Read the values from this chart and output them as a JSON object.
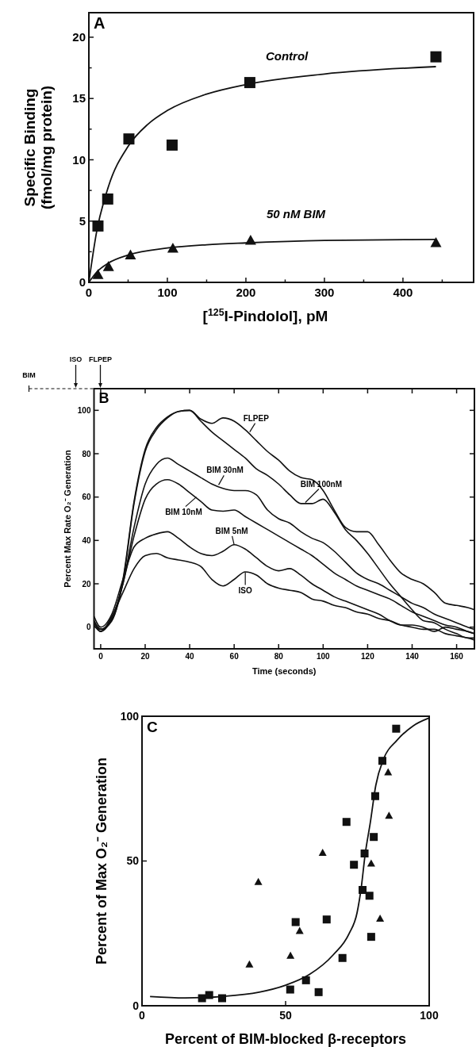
{
  "chart_data": [
    {
      "type": "scatter",
      "title": "A",
      "xlabel": "[$^{125}$I-Pindolol], pM",
      "ylabel": "Specific Binding\n(fmol/mg protein)",
      "xlim": [
        0,
        490
      ],
      "ylim": [
        0,
        22
      ],
      "xticks": [
        0,
        {
          "value": 50,
          "label": null
        },
        100,
        {
          "value": 150,
          "label": null
        },
        200,
        {
          "value": 250,
          "label": null
        },
        300,
        {
          "value": 350,
          "label": null
        },
        400,
        {
          "value": 450,
          "label": null
        }
      ],
      "yticks": [
        0,
        {
          "value": 2.5,
          "label": null
        },
        5,
        {
          "value": 7.5,
          "label": null
        },
        10,
        {
          "value": 12.5,
          "label": null
        },
        15,
        {
          "value": 17.5,
          "label": null
        },
        20
      ],
      "series": [
        {
          "name": "Control",
          "marker": "square",
          "color": "#111111",
          "x": [
            11.6,
            24,
            51,
            106,
            205,
            442
          ],
          "values": [
            4.6,
            6.8,
            11.7,
            11.2,
            16.3,
            18.4
          ]
        },
        {
          "name": "50 nM BIM",
          "marker": "triangle",
          "color": "#111111",
          "x": [
            11.6,
            25,
            53,
            107,
            206,
            442
          ],
          "values": [
            0.6,
            1.25,
            2.2,
            2.75,
            3.4,
            3.2
          ]
        },
        {
          "type": "line",
          "marker": "none",
          "color": "#111111",
          "x": [
            0,
            10,
            25,
            50,
            75,
            100,
            150,
            200,
            300,
            442
          ],
          "values": [
            0,
            4.16,
            7.83,
            11.1,
            12.89,
            14.02,
            15.36,
            16.14,
            17.0,
            17.6
          ]
        },
        {
          "type": "line",
          "marker": "none",
          "color": "#111111",
          "x": [
            0,
            10,
            25,
            50,
            100,
            150,
            200,
            300,
            442
          ],
          "values": [
            0,
            0.84,
            1.58,
            2.23,
            2.8,
            3.07,
            3.22,
            3.42,
            3.5
          ]
        }
      ]
    },
    {
      "type": "line",
      "title": "B",
      "xlabel": "Time (seconds)",
      "ylabel": "Percent Max Rate O₂⁻ Generation",
      "xlim": [
        -3,
        168
      ],
      "ylim": [
        -10,
        110
      ],
      "xticks": [
        0,
        20,
        40,
        60,
        80,
        100,
        120,
        140,
        160
      ],
      "yticks": [
        0,
        20,
        40,
        60,
        80,
        100
      ],
      "x": [
        -3,
        0,
        5,
        10,
        15,
        20,
        25,
        30,
        35,
        40,
        45,
        50,
        55,
        60,
        65,
        70,
        75,
        80,
        85,
        90,
        95,
        100,
        105,
        110,
        115,
        120,
        125,
        130,
        135,
        140,
        145,
        150,
        155,
        160,
        165,
        168
      ],
      "series": [
        {
          "color": "#111111",
          "values": [
            3,
            -1,
            3,
            22,
            58,
            82,
            92,
            97,
            99.5,
            100,
            96,
            94,
            96.5,
            95,
            91,
            86,
            81,
            77,
            72,
            69,
            68,
            63,
            54,
            46,
            44,
            44,
            38,
            31,
            25,
            22,
            20,
            16,
            11,
            10,
            9,
            8
          ]
        },
        {
          "color": "#111111",
          "values": [
            2,
            -1,
            3,
            21,
            57,
            81,
            91,
            96.5,
            99.5,
            100,
            95,
            90,
            86,
            82,
            78,
            73,
            70,
            66,
            61,
            57,
            57,
            59,
            53,
            45,
            40,
            34,
            27,
            20,
            14,
            8,
            3,
            2,
            -1,
            -3,
            -5,
            -5
          ]
        },
        {
          "color": "#111111",
          "values": [
            1,
            -2,
            4,
            20,
            46,
            66,
            75,
            78,
            75,
            72,
            69,
            66,
            64,
            63,
            63,
            61,
            54,
            50,
            48,
            44,
            41,
            39,
            35,
            30,
            25,
            22,
            20,
            17,
            14,
            11,
            9,
            6,
            4,
            2,
            0,
            -1
          ]
        },
        {
          "color": "#111111",
          "values": [
            2,
            -1,
            4,
            20,
            42,
            59,
            66,
            68,
            66,
            62,
            58,
            54,
            53.5,
            54,
            51,
            48,
            45,
            42,
            39,
            36,
            33,
            29,
            25,
            22,
            19,
            17,
            15,
            13,
            10,
            7,
            5,
            3,
            1,
            0,
            -2,
            -3
          ]
        },
        {
          "color": "#111111",
          "values": [
            5,
            0,
            6,
            22,
            37,
            41,
            43,
            44,
            41,
            37,
            34,
            33,
            35,
            38,
            36,
            32,
            28,
            26,
            27,
            24,
            20,
            17,
            14,
            12,
            10,
            8,
            6,
            3,
            1,
            1,
            0,
            -2,
            0,
            -1,
            -2,
            -3
          ]
        },
        {
          "color": "#111111",
          "values": [
            3,
            -2,
            5,
            16,
            27,
            33,
            34,
            32,
            31,
            30,
            28,
            22,
            19,
            22,
            25.5,
            24,
            20,
            18,
            17,
            16,
            13,
            12,
            10,
            9,
            7,
            6,
            4,
            3,
            1,
            0,
            -1,
            -1,
            -3,
            -4,
            -5,
            -6
          ]
        }
      ],
      "annotations": [
        "BIM",
        "ISO",
        "FLPEP",
        {
          "text": "FLPEP",
          "x": 67,
          "y": 90
        },
        {
          "text": "BIM 30nM",
          "x": 53,
          "y": 65.6
        },
        {
          "text": "BIM 100nM",
          "x": 92,
          "y": 57.5
        },
        {
          "text": "BIM 10nM",
          "x": 43,
          "y": 60
        },
        {
          "text": "BIM 5nM",
          "x": 60,
          "y": 38
        },
        {
          "text": "ISO",
          "x": 65,
          "y": 25.3
        }
      ]
    },
    {
      "type": "scatter",
      "title": "C",
      "xlabel": "Percent of BIM-blocked β-receptors",
      "ylabel": "Percent of Max O₂⁻ Generation",
      "xlim": [
        0,
        100
      ],
      "ylim": [
        0,
        100
      ],
      "xticks": [
        0,
        50,
        100
      ],
      "yticks": [
        0,
        50,
        100
      ],
      "series": [
        {
          "marker": "square",
          "color": "#111111",
          "x": [
            20.9,
            23.4,
            27.9,
            51.6,
            53.5,
            57.1,
            61.5,
            64.3,
            69.8,
            71.2,
            73.8,
            76.8,
            77.5,
            79.2,
            79.8,
            80.7,
            81.2,
            83.7,
            88.5
          ],
          "values": [
            2.6,
            3.7,
            2.6,
            5.6,
            28.9,
            8.8,
            4.7,
            29.8,
            16.5,
            63.5,
            48.7,
            40,
            52.6,
            38,
            23.8,
            58.3,
            72.4,
            84.6,
            95.7
          ]
        },
        {
          "marker": "triangle",
          "color": "#111111",
          "x": [
            37.4,
            40.5,
            51.7,
            54.9,
            62.9,
            79.8,
            82.9,
            85.7,
            86
          ],
          "values": [
            14.2,
            42.7,
            17.2,
            25.8,
            52.8,
            49.1,
            30,
            80.6,
            65.6
          ]
        },
        {
          "type": "line",
          "marker": "none",
          "color": "#111111",
          "x": [
            2.8,
            15,
            27.9,
            40.8,
            50,
            58.3,
            66.6,
            72.1,
            74.9,
            76.3,
            77.7,
            79.5,
            81.4,
            84.1,
            88.7,
            94.3,
            100
          ],
          "values": [
            3.2,
            2.7,
            3.2,
            4.7,
            7.1,
            10.8,
            17.6,
            24.9,
            32.2,
            40.5,
            52.3,
            63.3,
            76.1,
            85.2,
            91.6,
            96.6,
            99.4
          ]
        }
      ]
    }
  ]
}
